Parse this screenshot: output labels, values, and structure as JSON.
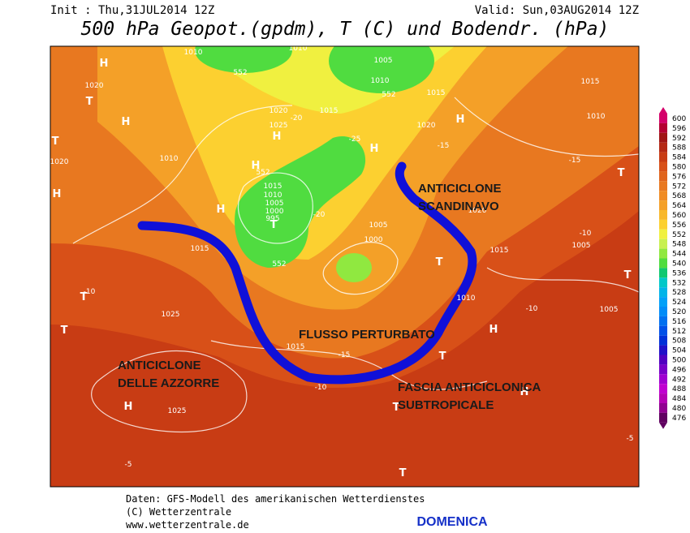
{
  "header": {
    "init": "Init : Thu,31JUL2014 12Z",
    "valid": "Valid: Sun,03AUG2014 12Z",
    "title": "500 hPa Geopot.(gpdm), T (C) und Bodendr. (hPa)"
  },
  "annotations": [
    {
      "lines": [
        "ANTICICLONE",
        "SCANDINAVO"
      ]
    },
    {
      "lines": [
        "FLUSSO PERTURBATO"
      ]
    },
    {
      "lines": [
        "ANTICICLONE",
        "DELLE AZZORRE"
      ]
    },
    {
      "lines": [
        "FASCIA ANTICICLONICA",
        "SUBTROPICALE"
      ]
    }
  ],
  "map_labels": [
    "1010",
    "1010",
    "1005",
    "1010",
    "1020",
    "1020",
    "1025",
    "1015",
    "1015",
    "1020",
    "1015",
    "1010",
    "1010",
    "1020",
    "1015",
    "1010",
    "1005",
    "1000",
    "995",
    "1005",
    "1000",
    "1020",
    "1015",
    "1015",
    "1005",
    "1010",
    "1005",
    "1025",
    "1015",
    "1025",
    "H",
    "H",
    "T",
    "T",
    "H",
    "H",
    "H",
    "H",
    "T",
    "H",
    "H",
    "T",
    "T",
    "T",
    "H",
    "H",
    "T",
    "T",
    "T",
    "T",
    "T",
    "H",
    "-10",
    "-15",
    "-10",
    "-10",
    "-15",
    "-20",
    "-20",
    "-25",
    "-15",
    "-10",
    "-5",
    "-5",
    "552",
    "552",
    "552",
    "552"
  ],
  "colorbar": {
    "values": [
      600,
      596,
      592,
      588,
      584,
      580,
      576,
      572,
      568,
      564,
      560,
      556,
      552,
      548,
      544,
      540,
      536,
      532,
      528,
      524,
      520,
      516,
      512,
      508,
      504,
      500,
      496,
      492,
      488,
      484,
      480,
      476
    ],
    "colors": [
      "#d4006a",
      "#b40032",
      "#a01414",
      "#b42814",
      "#c83c14",
      "#d85018",
      "#e0641c",
      "#e87820",
      "#f08c24",
      "#f4a028",
      "#f8b82c",
      "#fcd030",
      "#f0f040",
      "#c8f050",
      "#90e840",
      "#50dc40",
      "#10c870",
      "#00c8c8",
      "#00b4e8",
      "#00a0f8",
      "#008cf8",
      "#0070f0",
      "#0050e8",
      "#0030d8",
      "#2010c8",
      "#5000c0",
      "#7800c8",
      "#a000d0",
      "#c000d0",
      "#b400b4",
      "#900090",
      "#600060"
    ]
  },
  "footer": {
    "lines": [
      "Daten: GFS-Modell des amerikanischen Wetterdienstes",
      "(C) Wetterzentrale",
      "www.wetterzentrale.de"
    ],
    "day": "DOMENICA"
  }
}
